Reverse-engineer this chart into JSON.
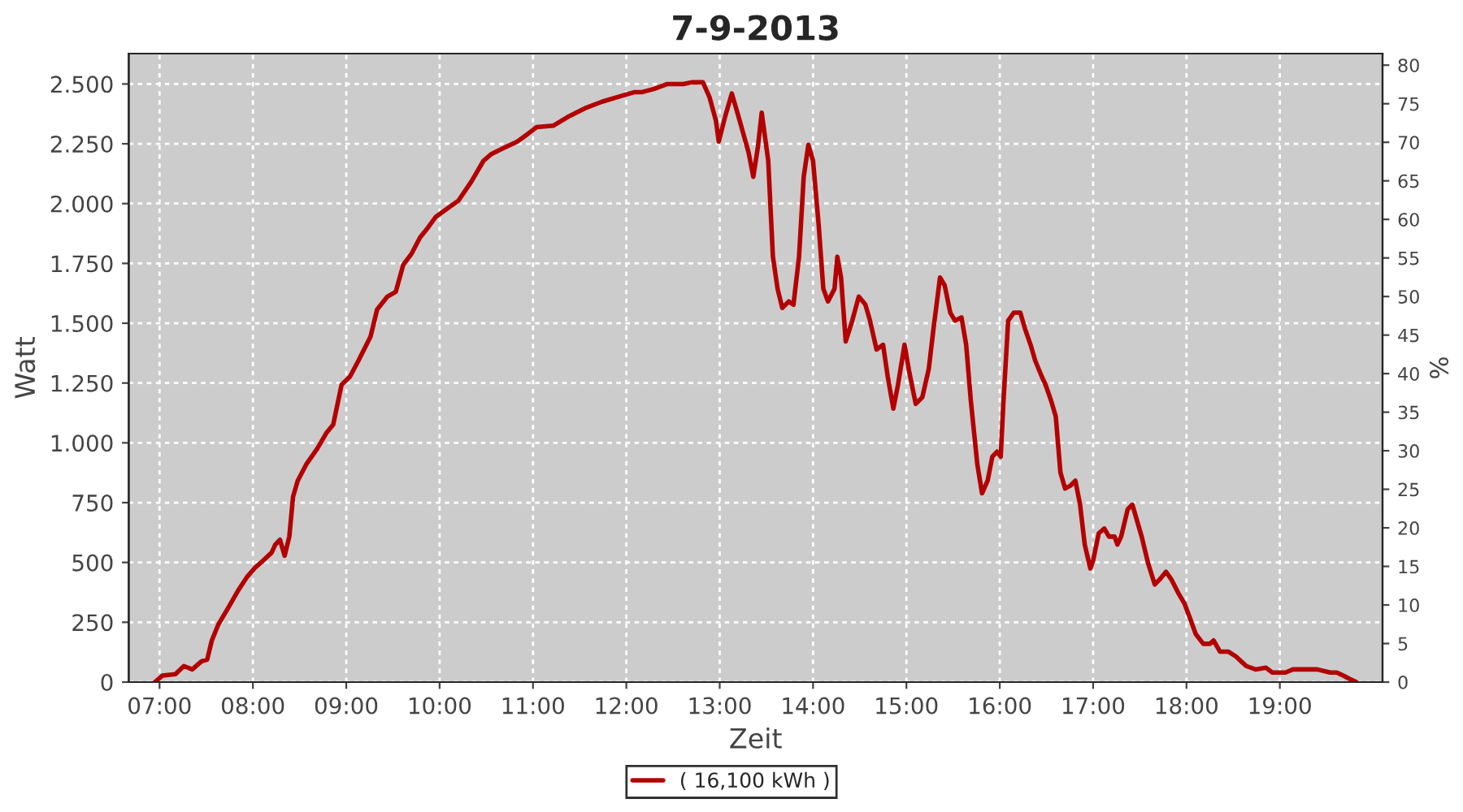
{
  "chart_data": {
    "type": "line",
    "title": "7-9-2013",
    "xlabel": "Zeit",
    "ylabel": "Watt",
    "y2label": "%",
    "xlim": [
      6.67,
      20.1
    ],
    "xticks": [
      {
        "value": 7,
        "label": "07:00"
      },
      {
        "value": 8,
        "label": "08:00"
      },
      {
        "value": 9,
        "label": "09:00"
      },
      {
        "value": 10,
        "label": "10:00"
      },
      {
        "value": 11,
        "label": "11:00"
      },
      {
        "value": 12,
        "label": "12:00"
      },
      {
        "value": 13,
        "label": "13:00"
      },
      {
        "value": 14,
        "label": "14:00"
      },
      {
        "value": 15,
        "label": "15:00"
      },
      {
        "value": 16,
        "label": "16:00"
      },
      {
        "value": 17,
        "label": "17:00"
      },
      {
        "value": 18,
        "label": "18:00"
      },
      {
        "value": 19,
        "label": "19:00"
      }
    ],
    "ylim": [
      0,
      2627
    ],
    "yticks": [
      0,
      250,
      500,
      750,
      {
        "value": 1000,
        "label": "1.000"
      },
      {
        "value": 1250,
        "label": "1.250"
      },
      {
        "value": 1500,
        "label": "1.500"
      },
      {
        "value": 1750,
        "label": "1.750"
      },
      {
        "value": 2000,
        "label": "2.000"
      },
      {
        "value": 2250,
        "label": "2.250"
      },
      {
        "value": 2500,
        "label": "2.500"
      }
    ],
    "y2lim": [
      0,
      81.5
    ],
    "y2ticks": [
      0,
      5,
      10,
      15,
      20,
      25,
      30,
      35,
      40,
      45,
      50,
      55,
      60,
      65,
      70,
      75,
      80
    ],
    "grid": true,
    "legend": "bottom",
    "line_style": "solid",
    "series": [
      {
        "name": "( 16,100 kWh )",
        "color": "#b30000",
        "x": [
          6.95,
          7.03,
          7.17,
          7.26,
          7.35,
          7.45,
          7.51,
          7.56,
          7.63,
          7.73,
          7.85,
          7.94,
          8.03,
          8.11,
          8.2,
          8.24,
          8.29,
          8.34,
          8.39,
          8.43,
          8.48,
          8.57,
          8.69,
          8.79,
          8.86,
          8.95,
          9.04,
          9.13,
          9.26,
          9.33,
          9.44,
          9.53,
          9.61,
          9.7,
          9.79,
          9.86,
          9.96,
          10.08,
          10.2,
          10.34,
          10.47,
          10.55,
          10.69,
          10.83,
          10.95,
          11.04,
          11.22,
          11.39,
          11.56,
          11.74,
          11.91,
          12.09,
          12.17,
          12.3,
          12.44,
          12.61,
          12.7,
          12.82,
          12.89,
          12.96,
          12.99,
          13.06,
          13.13,
          13.2,
          13.31,
          13.36,
          13.41,
          13.45,
          13.52,
          13.57,
          13.62,
          13.67,
          13.74,
          13.79,
          13.85,
          13.9,
          13.95,
          14.0,
          14.06,
          14.11,
          14.16,
          14.23,
          14.26,
          14.3,
          14.35,
          14.42,
          14.49,
          14.56,
          14.61,
          14.68,
          14.75,
          14.8,
          14.86,
          14.91,
          14.98,
          15.03,
          15.1,
          15.17,
          15.24,
          15.29,
          15.36,
          15.41,
          15.47,
          15.52,
          15.59,
          15.64,
          15.69,
          15.76,
          15.81,
          15.87,
          15.92,
          15.97,
          16.01,
          16.04,
          16.09,
          16.15,
          16.22,
          16.27,
          16.33,
          16.38,
          16.45,
          16.49,
          16.55,
          16.6,
          16.65,
          16.7,
          16.76,
          16.81,
          16.86,
          16.91,
          16.97,
          17.0,
          17.06,
          17.12,
          17.17,
          17.23,
          17.26,
          17.3,
          17.37,
          17.42,
          17.47,
          17.52,
          17.59,
          17.66,
          17.71,
          17.78,
          17.84,
          17.91,
          17.98,
          18.05,
          18.1,
          18.18,
          18.25,
          18.29,
          18.36,
          18.45,
          18.53,
          18.64,
          18.74,
          18.85,
          18.92,
          18.99,
          19.06,
          19.14,
          19.26,
          19.4,
          19.54,
          19.61,
          19.68,
          19.75,
          19.82
        ],
        "values": [
          0,
          27,
          33,
          67,
          53,
          87,
          94,
          174,
          241,
          307,
          388,
          441,
          481,
          508,
          541,
          575,
          595,
          528,
          608,
          775,
          842,
          909,
          976,
          1043,
          1076,
          1243,
          1277,
          1343,
          1444,
          1557,
          1611,
          1631,
          1744,
          1791,
          1858,
          1892,
          1945,
          1979,
          2012,
          2092,
          2179,
          2206,
          2233,
          2259,
          2293,
          2320,
          2326,
          2366,
          2399,
          2426,
          2446,
          2466,
          2466,
          2480,
          2500,
          2500,
          2507,
          2507,
          2446,
          2346,
          2259,
          2366,
          2460,
          2366,
          2213,
          2112,
          2239,
          2380,
          2179,
          1778,
          1644,
          1564,
          1591,
          1577,
          1778,
          2112,
          2246,
          2179,
          1912,
          1644,
          1591,
          1644,
          1778,
          1691,
          1424,
          1511,
          1611,
          1578,
          1511,
          1390,
          1410,
          1277,
          1143,
          1243,
          1410,
          1297,
          1163,
          1190,
          1310,
          1477,
          1691,
          1658,
          1544,
          1511,
          1524,
          1410,
          1176,
          909,
          789,
          842,
          942,
          963,
          942,
          1176,
          1511,
          1544,
          1544,
          1477,
          1410,
          1343,
          1277,
          1243,
          1176,
          1110,
          876,
          809,
          822,
          842,
          742,
          575,
          475,
          508,
          622,
          642,
          608,
          608,
          575,
          608,
          722,
          742,
          675,
          608,
          495,
          408,
          428,
          461,
          428,
          374,
          327,
          254,
          200,
          160,
          160,
          174,
          127,
          127,
          107,
          67,
          53,
          60,
          40,
          40,
          40,
          53,
          53,
          53,
          40,
          40,
          27,
          13,
          0
        ]
      }
    ]
  }
}
